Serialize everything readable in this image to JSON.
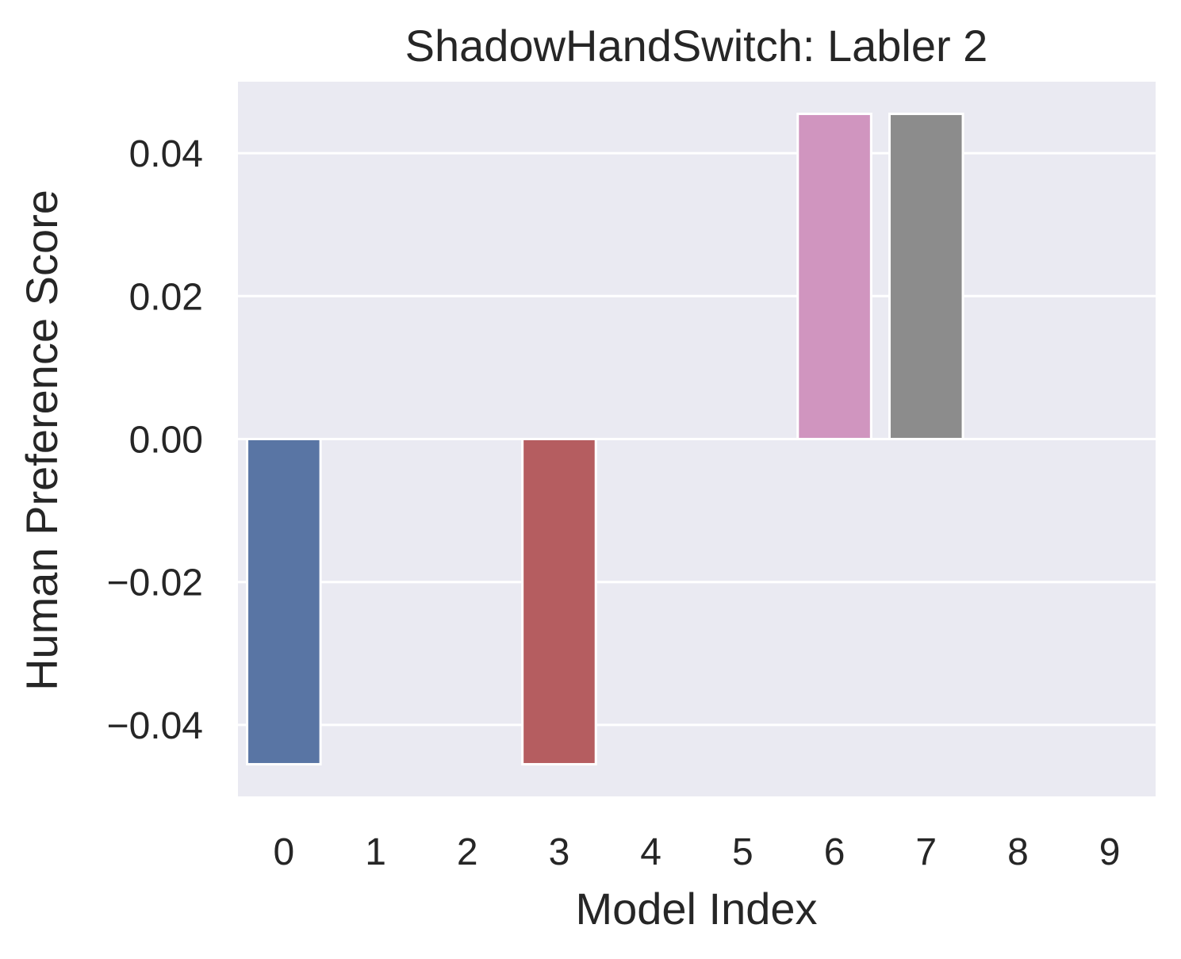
{
  "chart_data": {
    "type": "bar",
    "title": "ShadowHandSwitch: Labler 2",
    "xlabel": "Model Index",
    "ylabel": "Human Preference Score",
    "categories": [
      "0",
      "1",
      "2",
      "3",
      "4",
      "5",
      "6",
      "7",
      "8",
      "9"
    ],
    "values": [
      -0.0455,
      0,
      0,
      -0.0455,
      0,
      0,
      0.0455,
      0.0455,
      0,
      0
    ],
    "colors": [
      "#5975a4",
      "#cc8963",
      "#5f9e6e",
      "#b55d60",
      "#857aab",
      "#8d7866",
      "#d095bf",
      "#8c8c8c",
      "#c1b37f",
      "#71aec0"
    ],
    "ylim": [
      -0.05,
      0.05
    ],
    "yticks": [
      -0.04,
      -0.02,
      0.0,
      0.02,
      0.04
    ],
    "ytick_labels": [
      "−0.04",
      "−0.02",
      "0.00",
      "0.02",
      "0.04"
    ],
    "grid": true,
    "background": "#eaeaf2",
    "grid_color": "#ffffff",
    "legend": "none"
  }
}
